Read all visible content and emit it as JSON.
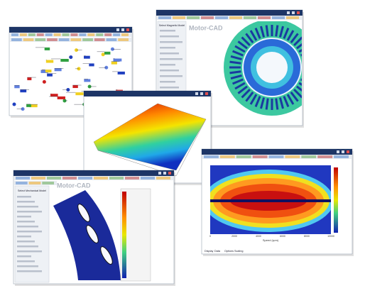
{
  "windows": [
    {
      "kind": "schematic"
    },
    {
      "kind": "magnetic",
      "panel_title": "Select Magnetic Model",
      "logo": "Motor-CAD"
    },
    {
      "kind": "surface"
    },
    {
      "kind": "efficiency",
      "x_label": "Speed (rpm)",
      "x_ticks": [
        "0",
        "2000",
        "4000",
        "6000",
        "8000",
        "10000"
      ],
      "tabs": [
        "Display",
        "Data",
        "Options",
        "Scaling"
      ]
    },
    {
      "kind": "mechanical",
      "panel_title": "Select Mechanical Model",
      "logo": "Motor-CAD"
    }
  ]
}
